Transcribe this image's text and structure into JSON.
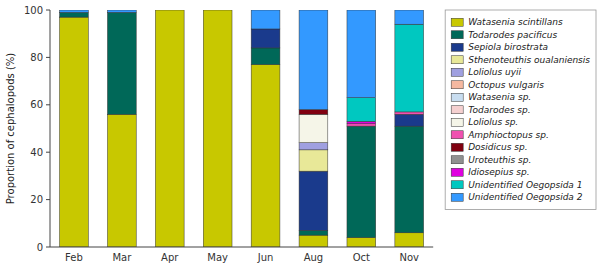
{
  "chart_data": {
    "type": "bar",
    "stacked": true,
    "y_label": "Proportion of cephalopods (%)",
    "categories": [
      "Feb",
      "Mar",
      "Apr",
      "May",
      "Jun",
      "Aug",
      "Oct",
      "Nov"
    ],
    "ylim": [
      0,
      100
    ],
    "yticks": [
      0,
      20,
      40,
      60,
      80,
      100
    ],
    "grid": false,
    "legend": "right",
    "series": [
      {
        "name": "Watasenia scintillans",
        "color": "#c8c800",
        "values": [
          97,
          56,
          100,
          100,
          77,
          5,
          4,
          6
        ]
      },
      {
        "name": "Todarodes pacificus",
        "color": "#006858",
        "values": [
          2,
          43,
          0,
          0,
          7,
          2,
          47,
          45
        ]
      },
      {
        "name": "Sepiola birostrata",
        "color": "#1a3a8c",
        "values": [
          0,
          0,
          0,
          0,
          8,
          25,
          0,
          5
        ]
      },
      {
        "name": "Sthenoteuthis oualaniensis",
        "color": "#e8e898",
        "values": [
          0,
          0,
          0,
          0,
          0,
          9,
          0,
          0
        ]
      },
      {
        "name": "Loliolus uyii",
        "color": "#a0a0e0",
        "values": [
          0,
          0,
          0,
          0,
          0,
          3,
          0,
          0
        ]
      },
      {
        "name": "Octopus vulgaris",
        "color": "#f5b8a0",
        "values": [
          0,
          0,
          0,
          0,
          0,
          0,
          0,
          0
        ]
      },
      {
        "name": "Watasenia sp.",
        "color": "#c8ddf0",
        "values": [
          0,
          0,
          0,
          0,
          0,
          0,
          0,
          0
        ]
      },
      {
        "name": "Todarodes sp.",
        "color": "#f5d0d0",
        "values": [
          0,
          0,
          0,
          0,
          0,
          0,
          0,
          0
        ]
      },
      {
        "name": "Loliolus sp.",
        "color": "#f5f5e8",
        "values": [
          0,
          0,
          0,
          0,
          0,
          12,
          0,
          0
        ]
      },
      {
        "name": "Amphioctopus sp.",
        "color": "#f050b0",
        "values": [
          0,
          0,
          0,
          0,
          0,
          0,
          1,
          1
        ]
      },
      {
        "name": "Dosidicus sp.",
        "color": "#800010",
        "values": [
          0,
          0,
          0,
          0,
          0,
          2,
          0,
          0
        ]
      },
      {
        "name": "Uroteuthis sp.",
        "color": "#909090",
        "values": [
          0,
          0,
          0,
          0,
          0,
          0,
          0,
          0
        ]
      },
      {
        "name": "Idiosepius sp.",
        "color": "#e000e0",
        "values": [
          0,
          0,
          0,
          0,
          0,
          0,
          1,
          0
        ]
      },
      {
        "name": "Unidentified Oegopsida 1",
        "color": "#00c8c0",
        "values": [
          0,
          0,
          0,
          0,
          0,
          0,
          10,
          37
        ]
      },
      {
        "name": "Unidentified Oegopsida 2",
        "color": "#3399ff",
        "values": [
          1,
          1,
          0,
          0,
          8,
          42,
          37,
          6
        ]
      }
    ]
  }
}
